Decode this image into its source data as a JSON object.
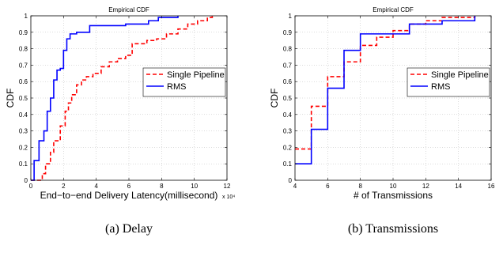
{
  "chart_data": [
    {
      "type": "line",
      "step": true,
      "title": "Empirical CDF",
      "xlabel": "End−to−end Delivery Latency(millisecond)",
      "x_exponent": "x 10⁴",
      "ylabel": "CDF",
      "caption": "(a) Delay",
      "xlim": [
        0,
        12
      ],
      "ylim": [
        0,
        1
      ],
      "xticks": [
        0,
        2,
        4,
        6,
        8,
        10,
        12
      ],
      "xtick_labels": [
        "0",
        "2",
        "4",
        "6",
        "8",
        "10",
        "12"
      ],
      "yticks": [
        0,
        0.1,
        0.2,
        0.3,
        0.4,
        0.5,
        0.6,
        0.7,
        0.8,
        0.9,
        1
      ],
      "ytick_labels": [
        "0",
        "0.1",
        "0.2",
        "0.3",
        "0.4",
        "0.5",
        "0.6",
        "0.7",
        "0.8",
        "0.9",
        "1"
      ],
      "grid": true,
      "legend_position": "center-right",
      "series": [
        {
          "name": "Single Pipeline",
          "color": "#ff0000",
          "dash": "dashed",
          "x": [
            0,
            0.7,
            0.9,
            1.2,
            1.4,
            1.8,
            2.1,
            2.3,
            2.5,
            2.8,
            3.1,
            3.4,
            3.8,
            4.3,
            4.8,
            5.3,
            5.8,
            6.2,
            7.1,
            7.7,
            8.3,
            9.0,
            9.6,
            10.2,
            10.8,
            11.1
          ],
          "y": [
            0,
            0.04,
            0.1,
            0.17,
            0.24,
            0.33,
            0.42,
            0.47,
            0.52,
            0.58,
            0.61,
            0.63,
            0.65,
            0.69,
            0.72,
            0.74,
            0.76,
            0.83,
            0.85,
            0.86,
            0.89,
            0.92,
            0.95,
            0.97,
            0.99,
            1.0
          ]
        },
        {
          "name": "RMS",
          "color": "#0000ff",
          "dash": "solid",
          "x": [
            0,
            0.2,
            0.5,
            0.8,
            1.0,
            1.2,
            1.4,
            1.6,
            1.8,
            2.0,
            2.2,
            2.4,
            2.8,
            3.6,
            5.8,
            7.2,
            7.8,
            9.0
          ],
          "y": [
            0,
            0.12,
            0.24,
            0.3,
            0.42,
            0.5,
            0.61,
            0.67,
            0.68,
            0.79,
            0.86,
            0.89,
            0.9,
            0.94,
            0.95,
            0.97,
            0.99,
            1.0
          ]
        }
      ]
    },
    {
      "type": "line",
      "step": true,
      "title": "Empirical CDF",
      "xlabel": "# of Transmissions",
      "ylabel": "CDF",
      "caption": "(b) Transmissions",
      "xlim": [
        4,
        16
      ],
      "ylim": [
        0,
        1
      ],
      "xticks": [
        4,
        6,
        8,
        10,
        12,
        14,
        16
      ],
      "xtick_labels": [
        "4",
        "6",
        "8",
        "10",
        "12",
        "14",
        "16"
      ],
      "yticks": [
        0,
        0.1,
        0.2,
        0.3,
        0.4,
        0.5,
        0.6,
        0.7,
        0.8,
        0.9,
        1
      ],
      "ytick_labels": [
        "0",
        "0.1",
        "0.2",
        "0.3",
        "0.4",
        "0.5",
        "0.6",
        "0.7",
        "0.8",
        "0.9",
        "1"
      ],
      "grid": true,
      "legend_position": "center-right",
      "series": [
        {
          "name": "Single Pipeline",
          "color": "#ff0000",
          "dash": "dashed",
          "x": [
            4,
            5,
            6,
            7,
            8,
            9,
            10,
            11,
            12,
            13,
            15
          ],
          "y": [
            0.19,
            0.45,
            0.63,
            0.72,
            0.82,
            0.87,
            0.91,
            0.95,
            0.97,
            0.99,
            1.0
          ]
        },
        {
          "name": "RMS",
          "color": "#0000ff",
          "dash": "solid",
          "x": [
            4,
            5,
            6,
            7,
            8,
            11,
            13,
            15
          ],
          "y": [
            0.1,
            0.31,
            0.56,
            0.79,
            0.89,
            0.95,
            0.97,
            1.0
          ]
        }
      ]
    }
  ]
}
